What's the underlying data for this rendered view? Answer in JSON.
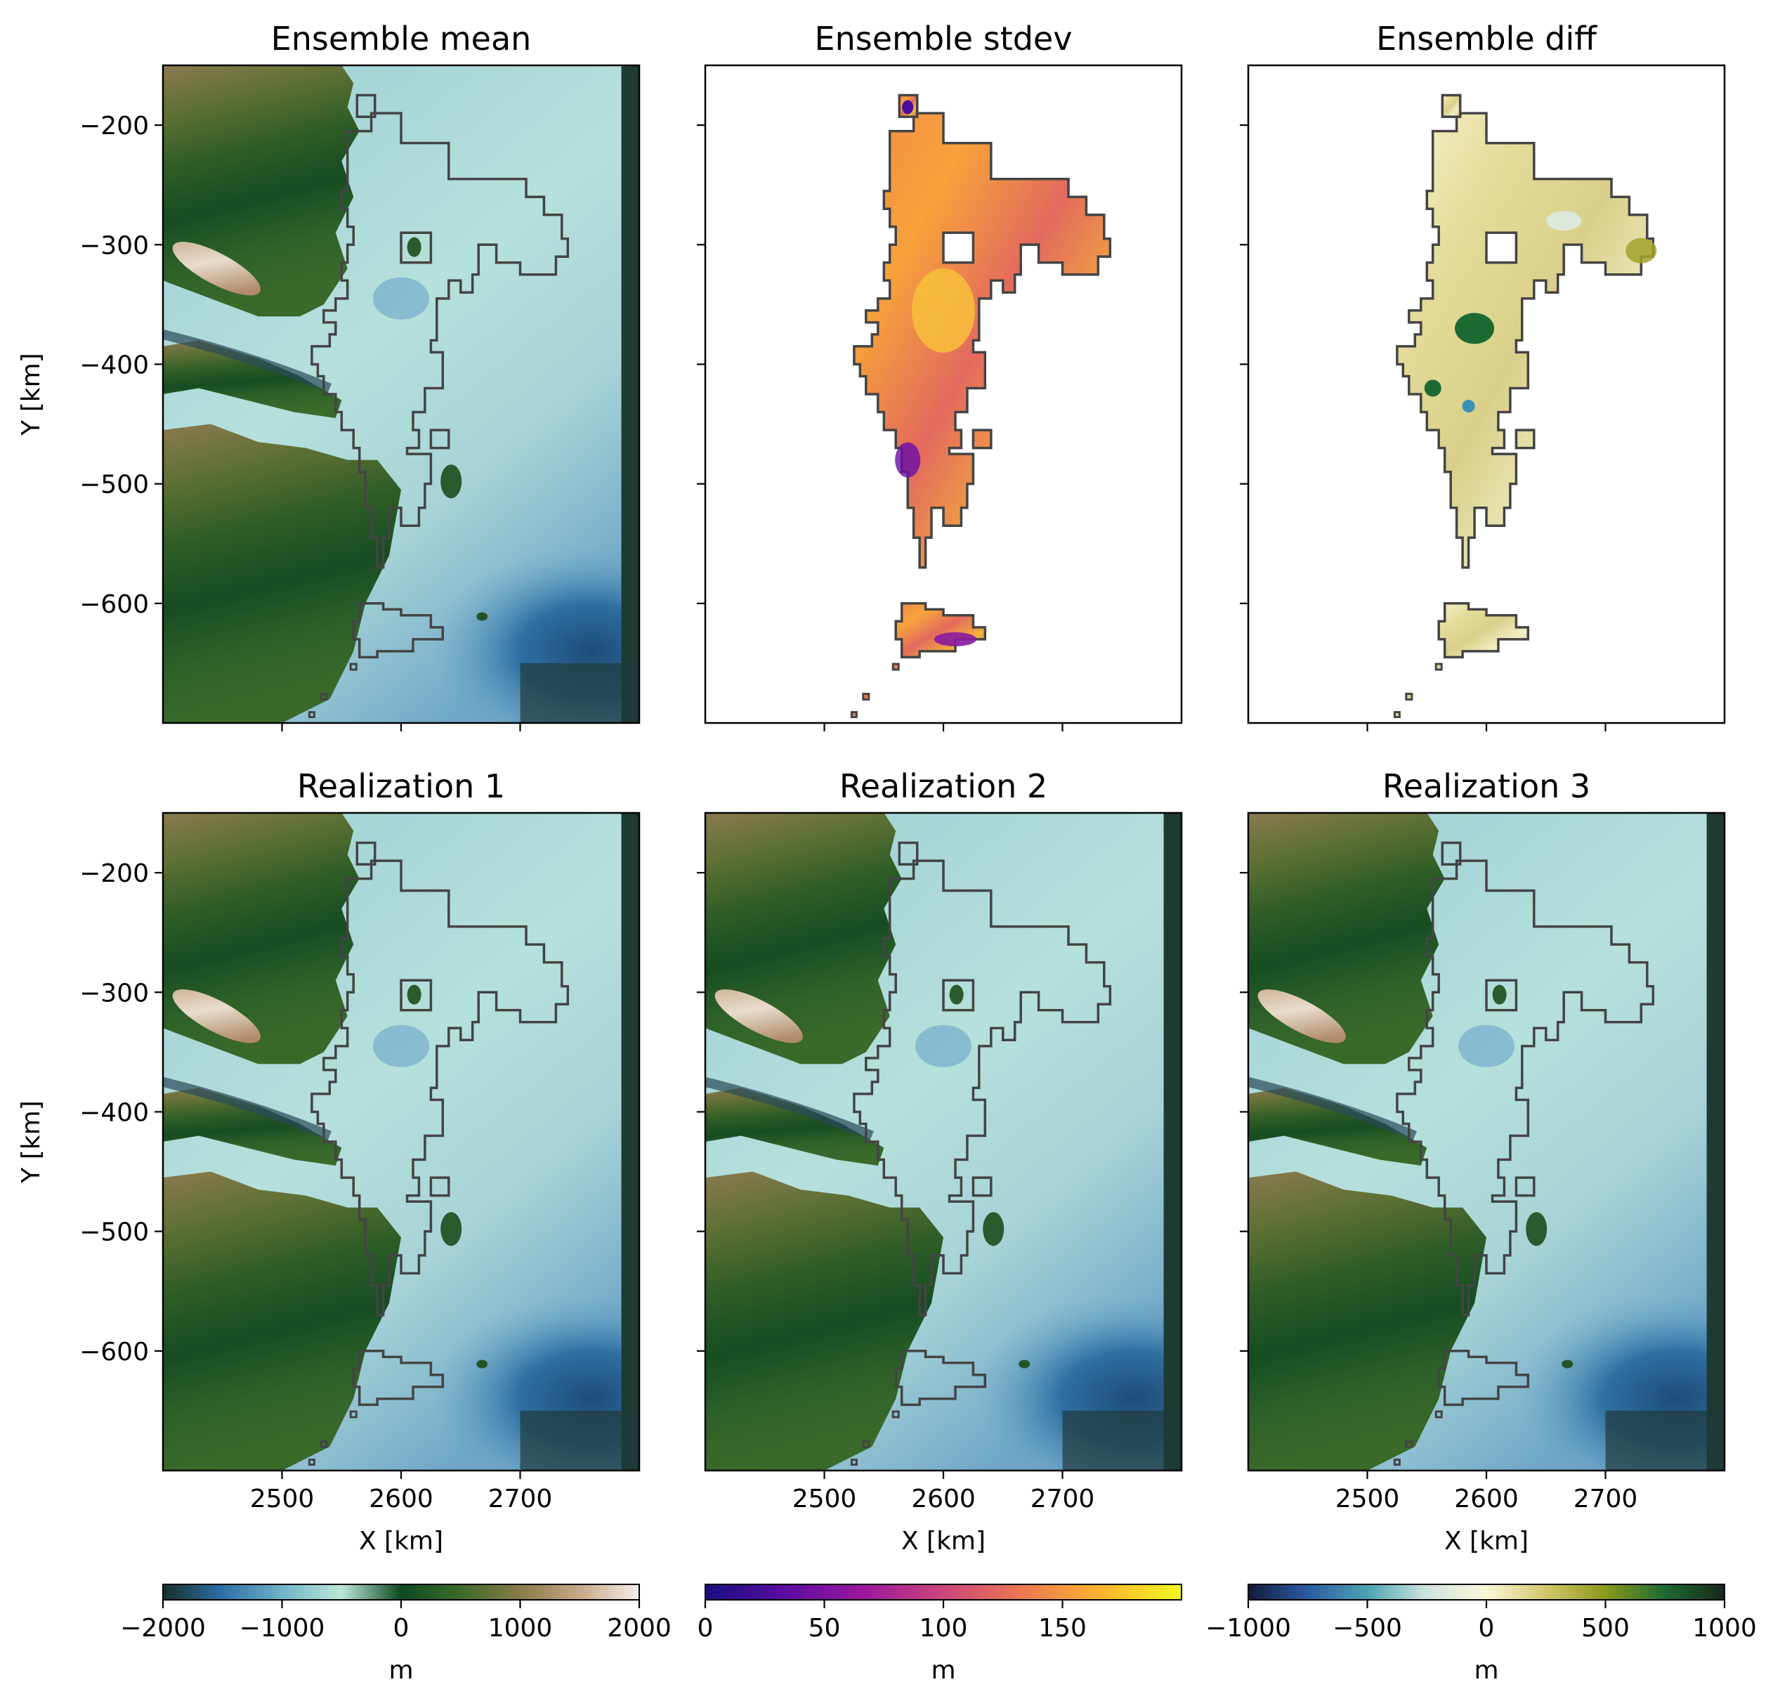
{
  "chart_data": [
    {
      "type": "heatmap",
      "title": "Ensemble mean",
      "xlabel": "",
      "ylabel": "Y [km]",
      "xlim": [
        2400,
        2800
      ],
      "ylim": [
        -700,
        -150
      ],
      "xticks": [
        2500,
        2600,
        2700
      ],
      "xticklabels": [
        "",
        "",
        ""
      ],
      "yticks": [
        -200,
        -300,
        -400,
        -500,
        -600
      ],
      "yticklabels": [
        "−200",
        "−300",
        "−400",
        "−500",
        "−600"
      ],
      "colormap": "topo",
      "clim": [
        -2000,
        2000
      ],
      "outline_color": "#444444"
    },
    {
      "type": "heatmap",
      "title": "Ensemble stdev",
      "xlabel": "",
      "ylabel": "",
      "xlim": [
        2400,
        2800
      ],
      "ylim": [
        -700,
        -150
      ],
      "xticks": [
        2500,
        2600,
        2700
      ],
      "xticklabels": [
        "",
        "",
        ""
      ],
      "yticks": [
        -200,
        -300,
        -400,
        -500,
        -600
      ],
      "yticklabels": [
        "",
        "",
        "",
        "",
        ""
      ],
      "colormap": "plasma",
      "clim": [
        0,
        200
      ]
    },
    {
      "type": "heatmap",
      "title": "Ensemble diff",
      "xlabel": "",
      "ylabel": "",
      "xlim": [
        2400,
        2800
      ],
      "ylim": [
        -700,
        -150
      ],
      "xticks": [
        2500,
        2600,
        2700
      ],
      "xticklabels": [
        "",
        "",
        ""
      ],
      "yticks": [
        -200,
        -300,
        -400,
        -500,
        -600
      ],
      "yticklabels": [
        "",
        "",
        "",
        "",
        ""
      ],
      "colormap": "delta",
      "clim": [
        -1000,
        1000
      ]
    },
    {
      "type": "heatmap",
      "title": "Realization 1",
      "xlabel": "X [km]",
      "ylabel": "Y [km]",
      "xlim": [
        2400,
        2800
      ],
      "ylim": [
        -700,
        -150
      ],
      "xticks": [
        2500,
        2600,
        2700
      ],
      "xticklabels": [
        "2500",
        "2600",
        "2700"
      ],
      "yticks": [
        -200,
        -300,
        -400,
        -500,
        -600
      ],
      "yticklabels": [
        "−200",
        "−300",
        "−400",
        "−500",
        "−600"
      ],
      "colormap": "topo",
      "clim": [
        -2000,
        2000
      ]
    },
    {
      "type": "heatmap",
      "title": "Realization 2",
      "xlabel": "X [km]",
      "ylabel": "",
      "xlim": [
        2400,
        2800
      ],
      "ylim": [
        -700,
        -150
      ],
      "xticks": [
        2500,
        2600,
        2700
      ],
      "xticklabels": [
        "2500",
        "2600",
        "2700"
      ],
      "yticks": [
        -200,
        -300,
        -400,
        -500,
        -600
      ],
      "yticklabels": [
        "",
        "",
        "",
        "",
        ""
      ],
      "colormap": "topo",
      "clim": [
        -2000,
        2000
      ]
    },
    {
      "type": "heatmap",
      "title": "Realization 3",
      "xlabel": "X [km]",
      "ylabel": "",
      "xlim": [
        2400,
        2800
      ],
      "ylim": [
        -700,
        -150
      ],
      "xticks": [
        2500,
        2600,
        2700
      ],
      "xticklabels": [
        "2500",
        "2600",
        "2700"
      ],
      "yticks": [
        -200,
        -300,
        -400,
        -500,
        -600
      ],
      "yticklabels": [
        "",
        "",
        "",
        "",
        ""
      ],
      "colormap": "topo",
      "clim": [
        -2000,
        2000
      ]
    }
  ],
  "colorbars": [
    {
      "label": "m",
      "range": [
        -2000,
        2000
      ],
      "ticks": [
        -2000,
        -1000,
        0,
        1000,
        2000
      ],
      "ticklabels": [
        "−2000",
        "−1000",
        "0",
        "1000",
        "2000"
      ],
      "stops": [
        "#16302b",
        "#2d6fa6",
        "#6fb4c8",
        "#bde7d8",
        "#0d4a22",
        "#3d6b28",
        "#8a7a48",
        "#c8a888",
        "#f4efe8"
      ]
    },
    {
      "label": "m",
      "range": [
        0,
        200
      ],
      "ticks": [
        0,
        50,
        100,
        150
      ],
      "ticklabels": [
        "0",
        "50",
        "100",
        "150"
      ],
      "stops": [
        "#1b0c80",
        "#5a0ca3",
        "#9c179e",
        "#cb4679",
        "#ec7853",
        "#fdb42f",
        "#f0f921"
      ]
    },
    {
      "label": "m",
      "range": [
        -1000,
        1000
      ],
      "ticks": [
        -1000,
        -500,
        0,
        500,
        1000
      ],
      "ticklabels": [
        "−1000",
        "−500",
        "0",
        "500",
        "1000"
      ],
      "stops": [
        "#111a3b",
        "#2b5ba0",
        "#4ca3b4",
        "#cfe5e0",
        "#fcf7d8",
        "#d2c66a",
        "#8a9a1c",
        "#1d6a33",
        "#18261b"
      ]
    }
  ]
}
